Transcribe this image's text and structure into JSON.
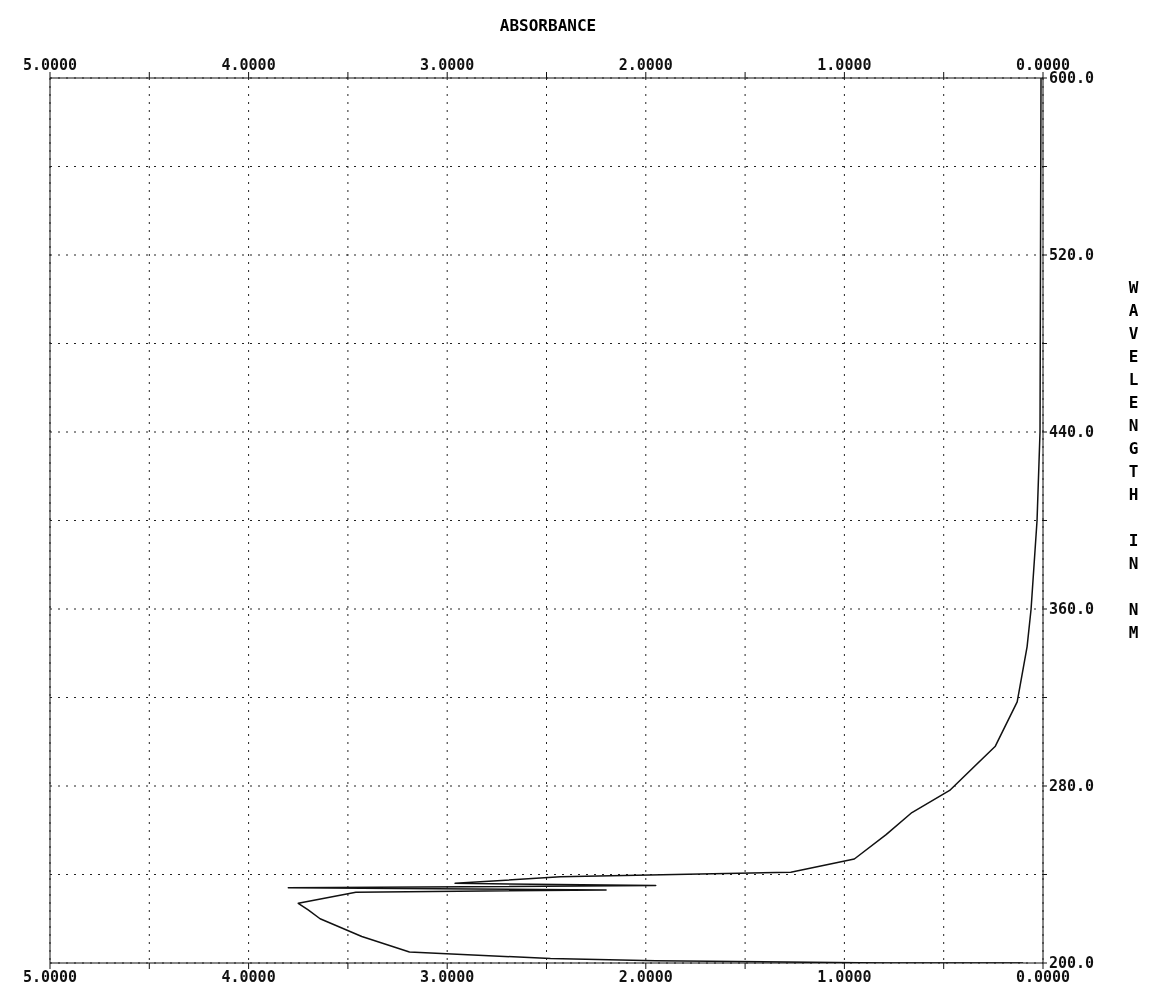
{
  "chart_data": {
    "type": "line",
    "x2label": "ABSORBANCE",
    "ylabel": "WAVELENGTH IN NM",
    "x": [
      0.01,
      0.015,
      0.03,
      0.06,
      0.08,
      0.13,
      0.24,
      0.47,
      0.66,
      0.79,
      0.95,
      1.27,
      2.43,
      2.96,
      1.95,
      3.8,
      2.2,
      3.46,
      3.75,
      3.7,
      3.64,
      3.43,
      3.19,
      2.48,
      1.95,
      0.8,
      0.1
    ],
    "series": [
      {
        "color": "#111111",
        "values": [
          600,
          440,
          400,
          360,
          343,
          318,
          298,
          278,
          268,
          258,
          247,
          241,
          239,
          236,
          235,
          234,
          233,
          232,
          227,
          224,
          220,
          212,
          205,
          202,
          201,
          200,
          200
        ]
      }
    ],
    "xlim": [
      5,
      0
    ],
    "xticks": [
      {
        "value": 5,
        "label": "5.0000"
      },
      {
        "value": 4.5,
        "label": null
      },
      {
        "value": 4,
        "label": "4.0000"
      },
      {
        "value": 3.5,
        "label": null
      },
      {
        "value": 3,
        "label": "3.0000"
      },
      {
        "value": 2.5,
        "label": null
      },
      {
        "value": 2,
        "label": "2.0000"
      },
      {
        "value": 1.5,
        "label": null
      },
      {
        "value": 1,
        "label": "1.0000"
      },
      {
        "value": 0.5,
        "label": null
      },
      {
        "value": 0,
        "label": "0.0000"
      }
    ],
    "x2lim": [
      5,
      0
    ],
    "x2ticks": [
      {
        "value": 5,
        "label": "5.0000"
      },
      {
        "value": 4.5,
        "label": null
      },
      {
        "value": 4,
        "label": "4.0000"
      },
      {
        "value": 3.5,
        "label": null
      },
      {
        "value": 3,
        "label": "3.0000"
      },
      {
        "value": 2.5,
        "label": null
      },
      {
        "value": 2,
        "label": "2.0000"
      },
      {
        "value": 1.5,
        "label": null
      },
      {
        "value": 1,
        "label": "1.0000"
      },
      {
        "value": 0.5,
        "label": null
      },
      {
        "value": 0,
        "label": "0.0000"
      }
    ],
    "ylim": [
      200,
      600
    ],
    "yticks": [
      {
        "value": 200,
        "label": "200.0"
      },
      {
        "value": 240,
        "label": null
      },
      {
        "value": 280,
        "label": "280.0"
      },
      {
        "value": 320,
        "label": null
      },
      {
        "value": 360,
        "label": "360.0"
      },
      {
        "value": 400,
        "label": null
      },
      {
        "value": 440,
        "label": "440.0"
      },
      {
        "value": 480,
        "label": null
      },
      {
        "value": 520,
        "label": "520.0"
      },
      {
        "value": 560,
        "label": null
      },
      {
        "value": 600,
        "label": "600.0"
      }
    ],
    "grid": true,
    "marker": "none",
    "line_style": "solid"
  }
}
